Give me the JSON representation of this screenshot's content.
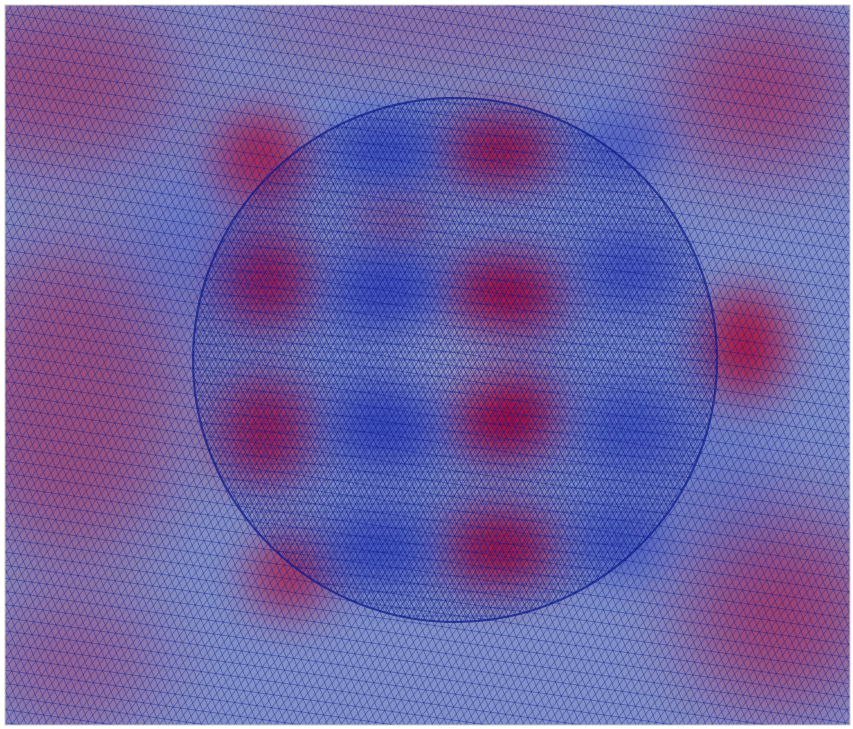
{
  "visualization": {
    "colormap": {
      "low": "#3b4cc0",
      "mid": "#c5c7cd",
      "high": "#b40426"
    },
    "mesh_line_color": "#0a1a8a",
    "background": "#ffffff"
  }
}
